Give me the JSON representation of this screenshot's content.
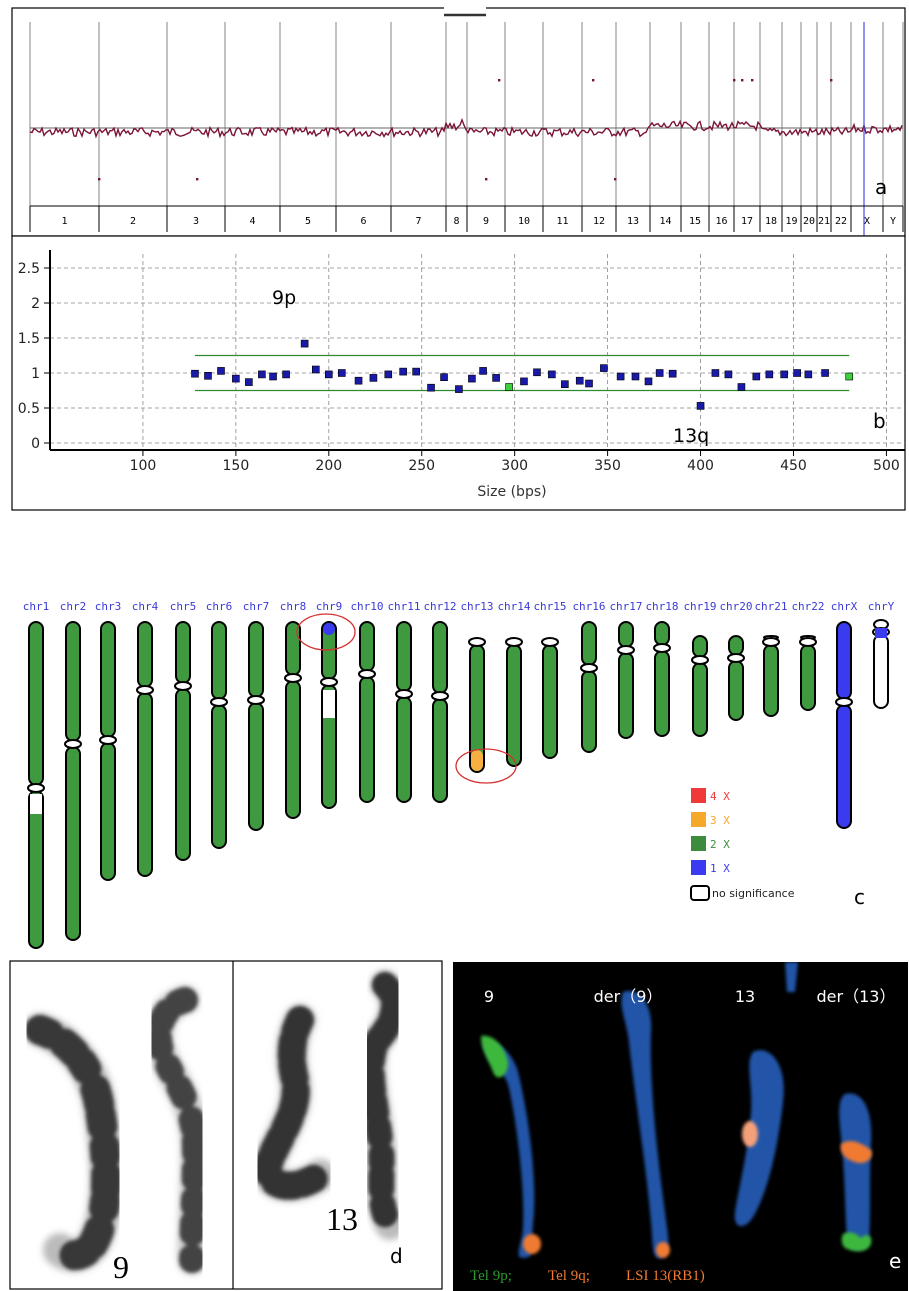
{
  "panel_a": {
    "letter": "a",
    "chromosomes": [
      "1",
      "2",
      "3",
      "4",
      "5",
      "6",
      "7",
      "8",
      "9",
      "10",
      "11",
      "12",
      "13",
      "14",
      "15",
      "16",
      "17",
      "18",
      "19",
      "20",
      "21",
      "22",
      "X",
      "Y"
    ]
  },
  "panel_b": {
    "letter": "b",
    "label_gain": "9p",
    "label_loss": "13q",
    "xlabel": "Size (bps)"
  },
  "chart_data": {
    "type": "scatter",
    "title": "",
    "xlabel": "Size (bps)",
    "ylabel": "",
    "xlim": [
      50,
      510
    ],
    "ylim": [
      -0.1,
      2.7
    ],
    "xticks": [
      100,
      150,
      200,
      250,
      300,
      350,
      400,
      450,
      500
    ],
    "yticks": [
      0,
      0.5,
      1,
      1.5,
      2,
      2.5
    ],
    "ytick_labels": [
      "0",
      "0.5",
      "1",
      "1.5",
      "2",
      "2.5"
    ],
    "thresholds": [
      1.25,
      0.75
    ],
    "threshold_range": [
      128,
      480
    ],
    "grid": true,
    "series": [
      {
        "color": "#1a1aa8",
        "points": [
          [
            128,
            0.99
          ],
          [
            135,
            0.96
          ],
          [
            142,
            1.03
          ],
          [
            150,
            0.92
          ],
          [
            157,
            0.87
          ],
          [
            164,
            0.98
          ],
          [
            170,
            0.95
          ],
          [
            177,
            0.98
          ],
          [
            187,
            1.42
          ],
          [
            193,
            1.05
          ],
          [
            200,
            0.98
          ],
          [
            207,
            1.0
          ],
          [
            216,
            0.89
          ],
          [
            224,
            0.93
          ],
          [
            232,
            0.98
          ],
          [
            240,
            1.02
          ],
          [
            247,
            1.02
          ],
          [
            255,
            0.79
          ],
          [
            262,
            0.94
          ],
          [
            270,
            0.77
          ],
          [
            277,
            0.92
          ],
          [
            283,
            1.03
          ],
          [
            290,
            0.93
          ],
          [
            305,
            0.88
          ],
          [
            312,
            1.01
          ],
          [
            320,
            0.98
          ],
          [
            327,
            0.84
          ],
          [
            335,
            0.89
          ],
          [
            340,
            0.85
          ],
          [
            348,
            1.07
          ],
          [
            357,
            0.95
          ],
          [
            365,
            0.95
          ],
          [
            372,
            0.88
          ],
          [
            378,
            1.0
          ],
          [
            385,
            0.99
          ],
          [
            400,
            0.53
          ],
          [
            408,
            1.0
          ],
          [
            415,
            0.98
          ],
          [
            422,
            0.8
          ],
          [
            430,
            0.95
          ],
          [
            437,
            0.98
          ],
          [
            445,
            0.98
          ],
          [
            452,
            1.0
          ],
          [
            458,
            0.98
          ],
          [
            467,
            1.0
          ]
        ]
      },
      {
        "color": "#3ecf3e",
        "points": [
          [
            297,
            0.8
          ],
          [
            480,
            0.95
          ]
        ]
      }
    ]
  },
  "panel_c": {
    "letter": "c",
    "chromosome_labels": [
      "chr1",
      "chr2",
      "chr3",
      "chr4",
      "chr5",
      "chr6",
      "chr7",
      "chr8",
      "chr9",
      "chr10",
      "chr11",
      "chr12",
      "chr13",
      "chr14",
      "chr15",
      "chr16",
      "chr17",
      "chr18",
      "chr19",
      "chr20",
      "chr21",
      "chr22",
      "chrX",
      "chrY"
    ],
    "legend": [
      {
        "label": "4 X",
        "color": "#f03a3a"
      },
      {
        "label": "3 X",
        "color": "#f5a92b"
      },
      {
        "label": "2 X",
        "color": "#3d8c3d"
      },
      {
        "label": "1 X",
        "color": "#3a3af0"
      },
      {
        "label": "no significance",
        "color": "#ffffff"
      }
    ],
    "colors": {
      "two_x": "#3f9a3f",
      "one_x": "#3a3aee",
      "three_x": "#f6b042"
    }
  },
  "panel_d": {
    "letter": "d",
    "label_9": "9",
    "label_13": "13"
  },
  "panel_e": {
    "letter": "e",
    "labels": [
      "9",
      "der（9）",
      "13",
      "der（13）"
    ],
    "probe_tel9p": "Tel 9p;",
    "probe_tel9q": "Tel 9q;",
    "probe_lsi13": "LSI 13(RB1)",
    "colors": {
      "tel9p": "#3cb83c",
      "tel9q": "#f07a30",
      "lsi13": "#f07a30"
    }
  }
}
